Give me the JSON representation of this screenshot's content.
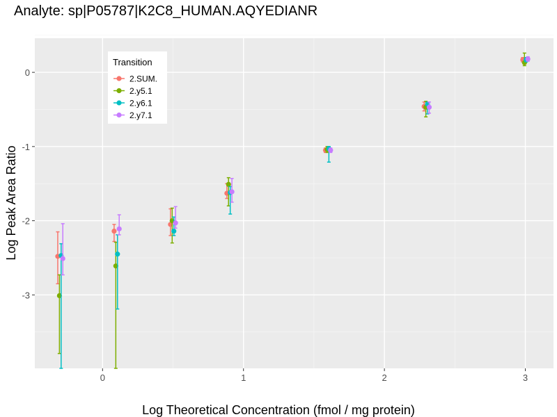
{
  "chart_data": {
    "type": "scatter",
    "title": "Analyte: sp|P05787|K2C8_HUMAN.AQYEDIANR",
    "xlabel": "Log Theoretical Concentration (fmol / mg protein)",
    "ylabel": "Log Peak Area Ratio",
    "xlim": [
      -0.545,
      3.2
    ],
    "ylim": [
      -3.99,
      0.46
    ],
    "xticks": [
      0,
      1,
      2,
      3
    ],
    "yticks": [
      0,
      -1,
      -2,
      -3
    ],
    "grid": true,
    "legend": {
      "title": "Transition",
      "placement": "top-left inside"
    },
    "x": [
      -0.3,
      0.1,
      0.5,
      0.9,
      1.6,
      2.3,
      3.0
    ],
    "series": [
      {
        "name": "2.SUM.",
        "color": "#F8766D",
        "values": [
          -2.48,
          -2.14,
          -2.05,
          -1.63,
          -1.05,
          -0.46,
          0.17
        ],
        "lower": [
          -2.85,
          -2.28,
          -2.2,
          -1.7,
          -1.08,
          -0.52,
          0.14
        ],
        "upper": [
          -2.15,
          -2.05,
          -1.84,
          -1.5,
          -1.02,
          -0.4,
          0.2
        ]
      },
      {
        "name": "2.y5.1",
        "color": "#7CAE00",
        "values": [
          -3.01,
          -2.61,
          -2.0,
          -1.51,
          -1.04,
          -0.47,
          0.13
        ],
        "lower": [
          -3.79,
          -4.0,
          -2.3,
          -1.8,
          -1.08,
          -0.6,
          0.09
        ],
        "upper": [
          -2.73,
          -2.29,
          -1.83,
          -1.42,
          -1.0,
          -0.39,
          0.26
        ]
      },
      {
        "name": "2.y6.1",
        "color": "#00BFC4",
        "values": [
          -2.47,
          -2.45,
          -2.14,
          -1.62,
          -1.03,
          -0.43,
          0.17
        ],
        "lower": [
          -4.0,
          -3.19,
          -2.2,
          -1.91,
          -1.21,
          -0.56,
          0.14
        ],
        "upper": [
          -2.31,
          -2.19,
          -1.95,
          -1.54,
          -1.0,
          -0.4,
          0.2
        ]
      },
      {
        "name": "2.y7.1",
        "color": "#C77CFF",
        "values": [
          -2.51,
          -2.11,
          -2.03,
          -1.61,
          -1.05,
          -0.47,
          0.18
        ],
        "lower": [
          -2.73,
          -2.19,
          -2.1,
          -1.75,
          -1.08,
          -0.55,
          0.15
        ],
        "upper": [
          -2.04,
          -1.92,
          -1.81,
          -1.43,
          -1.02,
          -0.4,
          0.21
        ]
      }
    ]
  }
}
